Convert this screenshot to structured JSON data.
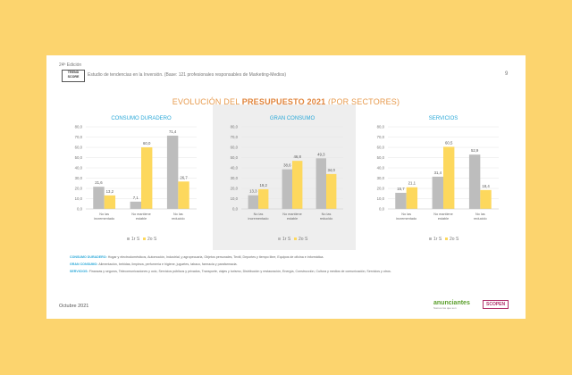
{
  "header": {
    "edition": "24ª Edición",
    "logo_text": "TREND SCORE",
    "subtitle": "Estudio de tendencias en la Inversión. (Base: 121 profesionales responsables de Marketing-Medios)",
    "page_number": "9"
  },
  "title": {
    "prefix": "EVOLUCIÓN DEL ",
    "bold": "PRESUPUESTO 2021",
    "suffix": " (POR SECTORES)"
  },
  "colors": {
    "series1": "#bdbdbd",
    "series2": "#fdd85d",
    "chart_title": "#2aa8d8",
    "title": "#e0833a"
  },
  "chart_data": [
    {
      "type": "bar",
      "title": "CONSUMO DURADERO",
      "categories": [
        "No las incrementado",
        "No mantiene estable",
        "No las reducido"
      ],
      "ylim": [
        0,
        80
      ],
      "yticks": [
        "0,0",
        "10,0",
        "20,0",
        "30,0",
        "40,0",
        "50,0",
        "60,0",
        "70,0",
        "80,0"
      ],
      "series": [
        {
          "name": "1r S",
          "values": [
            21.6,
            7.1,
            71.4
          ],
          "labels": [
            "21,6",
            "7,1",
            "71,4"
          ]
        },
        {
          "name": "2o S",
          "values": [
            13.2,
            60.0,
            26.7
          ],
          "labels": [
            "13,2",
            "60,0",
            "26,7"
          ]
        }
      ]
    },
    {
      "type": "bar",
      "title": "GRAN CONSUMO",
      "categories": [
        "No las incrementado",
        "No mantiene estable",
        "No las reducido"
      ],
      "ylim": [
        0,
        80
      ],
      "yticks": [
        "0,0",
        "10,0",
        "20,0",
        "30,0",
        "40,0",
        "50,0",
        "60,0",
        "70,0",
        "80,0"
      ],
      "series": [
        {
          "name": "1r S",
          "values": [
            13.3,
            38.6,
            49.3
          ],
          "labels": [
            "13,3",
            "38,6",
            "49,3"
          ]
        },
        {
          "name": "2o S",
          "values": [
            19.2,
            46.8,
            34.0
          ],
          "labels": [
            "19,2",
            "46,8",
            "34,0"
          ]
        }
      ]
    },
    {
      "type": "bar",
      "title": "SERVICIOS",
      "categories": [
        "No las incrementado",
        "No mantiene estable",
        "No las reducido"
      ],
      "ylim": [
        0,
        80
      ],
      "yticks": [
        "0,0",
        "10,0",
        "20,0",
        "30,0",
        "40,0",
        "50,0",
        "60,0",
        "70,0",
        "80,0"
      ],
      "series": [
        {
          "name": "1r S",
          "values": [
            15.7,
            31.4,
            52.9
          ],
          "labels": [
            "15,7",
            "31,4",
            "52,9"
          ]
        },
        {
          "name": "2o S",
          "values": [
            21.1,
            60.5,
            18.4
          ],
          "labels": [
            "21,1",
            "60,5",
            "18,4"
          ]
        }
      ]
    }
  ],
  "notes": [
    {
      "key": "CONSUMO DURADERO:",
      "text": " Hogar y electrodomésticos, Automoción, Industrial, y agropecuaria, Objetos personales, Textil, Deportes y tiempo libre, Equipos de oficina e informática."
    },
    {
      "key": "GRAN CONSUMO:",
      "text": " Alimentación, bebidas, limpieza, perfumería e higiene, juguetes, tabaco, farmacia y parafarmacia."
    },
    {
      "key": "SERVICIOS:",
      "text": " Finanzas y seguros, Telecomunicaciones y ocio, Servicios públicos y privados, Transporte, viajes y turismo, Distribución y restauración, Energía, Construcción, Cultura y medios de comunicación, Servicios y otros."
    }
  ],
  "footer": {
    "date": "Octubre 2021",
    "brand1": "anunciantes",
    "brand1_tag": "Somos los que son",
    "brand2": "SCOPEN"
  }
}
